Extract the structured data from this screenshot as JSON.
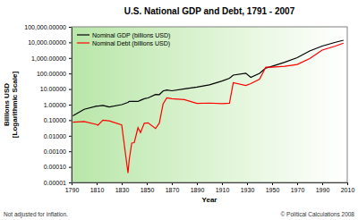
{
  "chart_data": {
    "type": "line",
    "title": "U.S. National GDP and Debt, 1791 - 2007",
    "x_label": "Year",
    "y_label": "Billions USD [Logarithmic Scale]",
    "annotations": [
      "Not adjusted for inflation.",
      "© Political Calculations 2008"
    ],
    "log": "y",
    "grid": false,
    "legend": "top-left",
    "x": [
      1791,
      1800,
      1810,
      1811,
      1815,
      1820,
      1830,
      1835,
      1836,
      1838,
      1840,
      1843,
      1845,
      1848,
      1851,
      1857,
      1860,
      1863,
      1866,
      1870,
      1880,
      1890,
      1900,
      1910,
      1916,
      1919,
      1929,
      1933,
      1940,
      1945,
      1950,
      1960,
      1970,
      1980,
      1990,
      2000,
      2007
    ],
    "series": [
      {
        "name": "Nominal GDP (billions USD)",
        "color": "#000000",
        "values": [
          0.19,
          0.5,
          0.8,
          0.8,
          0.9,
          0.7,
          1.0,
          1.4,
          1.6,
          1.6,
          1.6,
          1.6,
          1.9,
          2.4,
          2.7,
          4.5,
          4.4,
          7.5,
          8.7,
          7.8,
          10.4,
          13.5,
          18.7,
          33,
          50,
          79,
          104,
          57,
          102,
          223,
          294,
          526,
          1038,
          2790,
          5800,
          9817,
          13800
        ]
      },
      {
        "name": "Nominal Debt (billions USD)",
        "color": "#ff0000",
        "values": [
          0.075,
          0.083,
          0.053,
          0.048,
          0.1,
          0.091,
          0.049,
          4e-05,
          0.0003,
          0.0034,
          0.0036,
          0.033,
          0.016,
          0.063,
          0.068,
          0.029,
          0.065,
          1.1,
          2.7,
          2.4,
          2.1,
          1.2,
          1.26,
          1.15,
          1.23,
          25.5,
          16.9,
          22.5,
          43,
          258,
          257,
          290,
          380,
          908,
          3200,
          5600,
          9000
        ]
      }
    ],
    "xlim": [
      1790,
      2010
    ],
    "xticks": [
      1790,
      1810,
      1830,
      1850,
      1870,
      1890,
      1910,
      1930,
      1950,
      1970,
      1990,
      2010
    ],
    "ylim": [
      1e-05,
      100000
    ],
    "yticks": [
      {
        "value": 1e-05,
        "label": "0.00001"
      },
      {
        "value": 0.0001,
        "label": "0.00010"
      },
      {
        "value": 0.001,
        "label": "0.00100"
      },
      {
        "value": 0.01,
        "label": "0.01000"
      },
      {
        "value": 0.1,
        "label": "0.10000"
      },
      {
        "value": 1,
        "label": "1.00000"
      },
      {
        "value": 10,
        "label": "10.00000"
      },
      {
        "value": 100,
        "label": "100.00000"
      },
      {
        "value": 1000,
        "label": "1,000.00000"
      },
      {
        "value": 10000,
        "label": "10,000.00000"
      },
      {
        "value": 100000,
        "label": "100,000.00000"
      }
    ]
  }
}
